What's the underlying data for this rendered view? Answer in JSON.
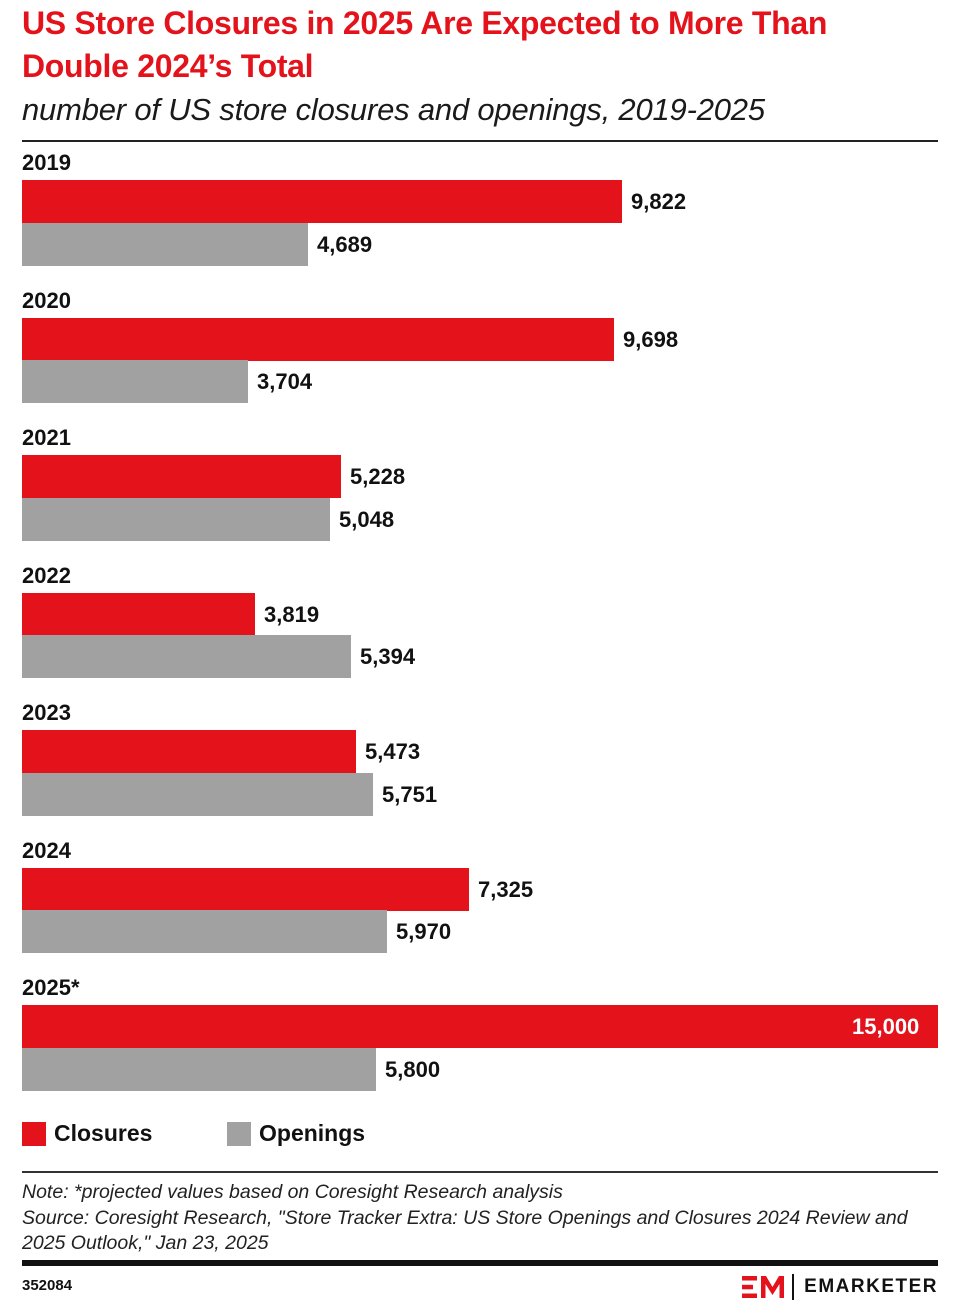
{
  "header": {
    "title": "US Store Closures in 2025 Are Expected to More Than Double 2024’s Total",
    "subtitle": "number of US store closures and openings, 2019-2025"
  },
  "chart_data": {
    "type": "bar",
    "orientation": "horizontal",
    "title": "US Store Closures in 2025 Are Expected to More Than Double 2024’s Total",
    "subtitle": "number of US store closures and openings, 2019-2025",
    "categories": [
      "2019",
      "2020",
      "2021",
      "2022",
      "2023",
      "2024",
      "2025*"
    ],
    "series": [
      {
        "name": "Closures",
        "color": "#e3121b",
        "values": [
          9822,
          9698,
          5228,
          3819,
          5473,
          7325,
          15000
        ]
      },
      {
        "name": "Openings",
        "color": "#a1a1a1",
        "values": [
          4689,
          3704,
          5048,
          5394,
          5751,
          5970,
          5800
        ]
      }
    ],
    "xlim": [
      0,
      15000
    ],
    "grid": false,
    "legend": "bottom-left"
  },
  "legend": {
    "closures_label": "Closures",
    "openings_label": "Openings"
  },
  "footer": {
    "note": "Note: *projected values based on Coresight Research analysis",
    "source": "Source: Coresight Research, \"Store Tracker Extra: US Store Openings and Closures 2024 Review and 2025 Outlook,\" Jan 23, 2025",
    "chart_id": "352084",
    "brand": "EMARKETER"
  },
  "colors": {
    "accent": "#e3121b",
    "secondary": "#a1a1a1"
  }
}
